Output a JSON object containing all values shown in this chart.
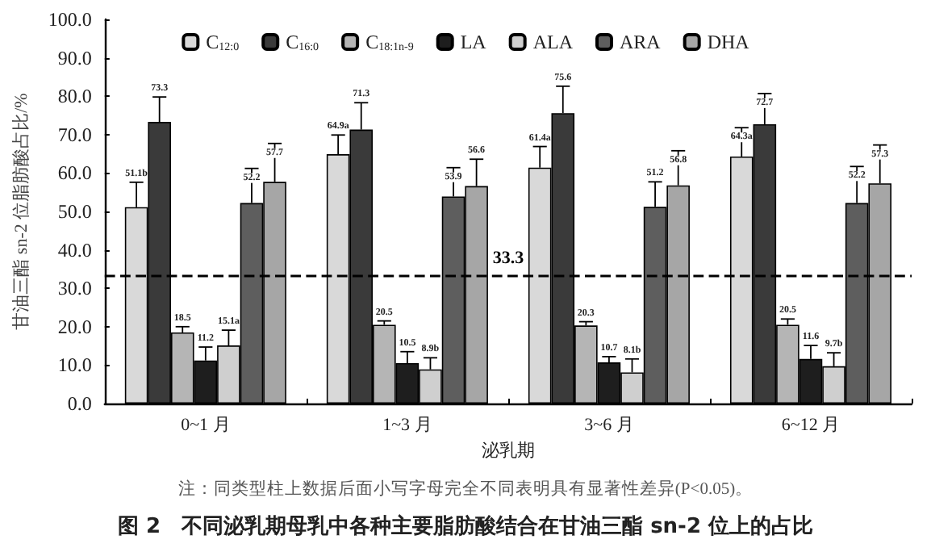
{
  "chart_data": {
    "type": "bar",
    "title": "图 2　不同泌乳期母乳中各种主要脂肪酸结合在甘油三酯 sn-2 位上的占比",
    "xlabel": "泌乳期",
    "ylabel": "甘油三酯 sn-2 位脂肪酸占比/%",
    "categories": [
      "0~1 月",
      "1~3 月",
      "3~6 月",
      "6~12 月"
    ],
    "series": [
      {
        "name": "C$_{12:0}$",
        "color": "#d9d9d9",
        "values": [
          51.1,
          64.9,
          61.4,
          64.3
        ],
        "errors": [
          6.5,
          5.0,
          5.5,
          7.5
        ],
        "value_labels": [
          "51.1b",
          "64.9a",
          "61.4a",
          "64.3a"
        ]
      },
      {
        "name": "C$_{16:0}$",
        "color": "#3a3a3a",
        "values": [
          73.3,
          71.3,
          75.6,
          72.7
        ],
        "errors": [
          6.5,
          7.0,
          7.0,
          8.0
        ],
        "value_labels": [
          "73.3",
          "71.3",
          "75.6",
          "72.7"
        ]
      },
      {
        "name": "C$_{18:1n-9}$",
        "color": "#b5b5b5",
        "values": [
          18.5,
          20.5,
          20.3,
          20.5
        ],
        "errors": [
          1.5,
          1.0,
          1.0,
          1.5
        ],
        "value_labels": [
          "18.5",
          "20.5",
          "20.3",
          "20.5"
        ]
      },
      {
        "name": "LA",
        "color": "#1e1e1e",
        "values": [
          11.2,
          10.5,
          10.7,
          11.6
        ],
        "errors": [
          3.5,
          3.0,
          1.5,
          3.5
        ],
        "value_labels": [
          "11.2",
          "10.5",
          "10.7",
          "11.6"
        ]
      },
      {
        "name": "ALA",
        "color": "#cfcfcf",
        "values": [
          15.1,
          8.9,
          8.1,
          9.7
        ],
        "errors": [
          4.0,
          3.0,
          3.5,
          3.5
        ],
        "value_labels": [
          "15.1a",
          "8.9b",
          "8.1b",
          "9.7b"
        ]
      },
      {
        "name": "ARA",
        "color": "#5e5e5e",
        "values": [
          52.2,
          53.9,
          51.2,
          52.2
        ],
        "errors": [
          9.0,
          7.5,
          6.5,
          9.5
        ],
        "value_labels": [
          "52.2",
          "53.9",
          "51.2",
          "52.2"
        ]
      },
      {
        "name": "DHA",
        "color": "#a6a6a6",
        "values": [
          57.7,
          56.6,
          56.8,
          57.3
        ],
        "errors": [
          10.0,
          7.0,
          9.0,
          10.0
        ],
        "value_labels": [
          "57.7",
          "56.6",
          "56.8",
          "57.3"
        ]
      }
    ],
    "ylim": [
      0,
      100
    ],
    "yticks": [
      {
        "value": 0,
        "label": "0.0"
      },
      {
        "value": 10,
        "label": "10.0"
      },
      {
        "value": 20,
        "label": "20.0"
      },
      {
        "value": 30,
        "label": "30.0"
      },
      {
        "value": 40,
        "label": "40.0"
      },
      {
        "value": 50,
        "label": "50.0"
      },
      {
        "value": 60,
        "label": "60.0"
      },
      {
        "value": 70,
        "label": "70.0"
      },
      {
        "value": 80,
        "label": "80.0"
      },
      {
        "value": 90,
        "label": "90.0"
      },
      {
        "value": 100,
        "label": "100.0"
      }
    ],
    "ref_lines": [
      {
        "axis": "y",
        "value": 33.3,
        "label": "33.3",
        "line_style": "dashed",
        "color": "#000000"
      }
    ],
    "annotations": [
      "注：同类型柱上数据后面小写字母完全不同表明具有显著性差异(P<0.05)。"
    ],
    "legend": "top",
    "grid": false
  }
}
